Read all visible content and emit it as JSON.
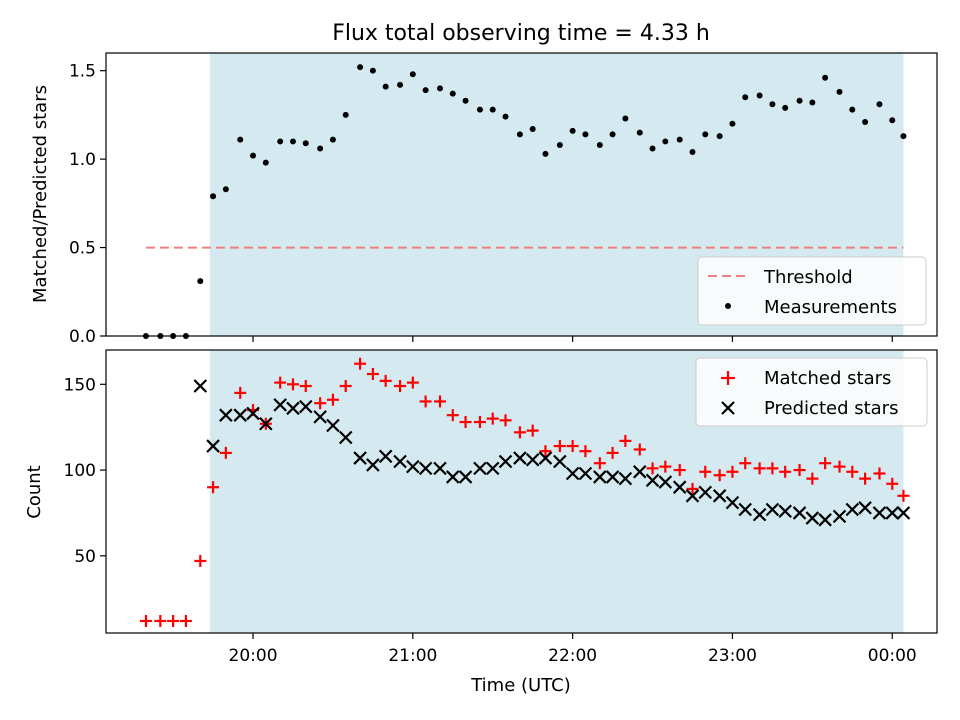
{
  "title": "Flux total observing time = 4.33 h",
  "chart_data": [
    {
      "type": "scatter",
      "panel": "top",
      "title": "Flux total observing time = 4.33 h",
      "xlabel": "",
      "ylabel": "Matched/Predicted stars",
      "x_unit": "hours since 00:00 of first day (UTC)",
      "xlim": [
        19.08,
        24.28
      ],
      "ylim": [
        0,
        1.6
      ],
      "yticks": [
        0.0,
        0.5,
        1.0,
        1.5
      ],
      "ytick_labels": [
        "0.0",
        "0.5",
        "1.0",
        "1.5"
      ],
      "xticks": [
        20,
        21,
        22,
        23,
        24
      ],
      "grid": false,
      "observing_window": [
        19.73,
        24.07
      ],
      "observing_window_color": "#d4eaf0",
      "threshold": {
        "value": 0.5,
        "x_range": [
          19.33,
          24.07
        ],
        "color": "#f08080"
      },
      "legend": {
        "position": "lower-right",
        "entries": [
          "Threshold",
          "Measurements"
        ]
      },
      "series": [
        {
          "name": "Measurements",
          "color": "#000000",
          "marker": "dot",
          "x": [
            19.33,
            19.42,
            19.5,
            19.58,
            19.67,
            19.75,
            19.83,
            19.92,
            20.0,
            20.08,
            20.17,
            20.25,
            20.33,
            20.42,
            20.5,
            20.58,
            20.67,
            20.75,
            20.83,
            20.92,
            21.0,
            21.08,
            21.17,
            21.25,
            21.33,
            21.42,
            21.5,
            21.58,
            21.67,
            21.75,
            21.83,
            21.92,
            22.0,
            22.08,
            22.17,
            22.25,
            22.33,
            22.42,
            22.5,
            22.58,
            22.67,
            22.75,
            22.83,
            22.92,
            23.0,
            23.08,
            23.17,
            23.25,
            23.33,
            23.42,
            23.5,
            23.58,
            23.67,
            23.75,
            23.83,
            23.92,
            24.0,
            24.07
          ],
          "y": [
            0.0,
            0.0,
            0.0,
            0.0,
            0.31,
            0.79,
            0.83,
            1.11,
            1.02,
            0.98,
            1.1,
            1.1,
            1.09,
            1.06,
            1.11,
            1.25,
            1.52,
            1.5,
            1.41,
            1.42,
            1.48,
            1.39,
            1.4,
            1.37,
            1.33,
            1.28,
            1.28,
            1.24,
            1.14,
            1.17,
            1.03,
            1.08,
            1.16,
            1.14,
            1.08,
            1.14,
            1.23,
            1.15,
            1.06,
            1.1,
            1.11,
            1.04,
            1.14,
            1.13,
            1.2,
            1.35,
            1.36,
            1.31,
            1.29,
            1.33,
            1.32,
            1.46,
            1.38,
            1.28,
            1.21,
            1.31,
            1.22,
            1.13
          ]
        }
      ]
    },
    {
      "type": "scatter",
      "panel": "bottom",
      "xlabel": "Time (UTC)",
      "ylabel": "Count",
      "x_unit": "hours since 00:00 of first day (UTC)",
      "xlim": [
        19.08,
        24.28
      ],
      "ylim": [
        5,
        170
      ],
      "yticks": [
        50,
        100,
        150
      ],
      "ytick_labels": [
        "50",
        "100",
        "150"
      ],
      "xticks": [
        20,
        21,
        22,
        23,
        24
      ],
      "xtick_labels": [
        "20:00",
        "21:00",
        "22:00",
        "23:00",
        "00:00"
      ],
      "grid": false,
      "observing_window": [
        19.73,
        24.07
      ],
      "observing_window_color": "#d4eaf0",
      "legend": {
        "position": "upper-right",
        "entries": [
          "Matched stars",
          "Predicted stars"
        ]
      },
      "series": [
        {
          "name": "Matched stars",
          "color": "#ff0000",
          "marker": "plus",
          "x": [
            19.33,
            19.42,
            19.5,
            19.58,
            19.67,
            19.75,
            19.83,
            19.92,
            20.0,
            20.08,
            20.17,
            20.25,
            20.33,
            20.42,
            20.5,
            20.58,
            20.67,
            20.75,
            20.83,
            20.92,
            21.0,
            21.08,
            21.17,
            21.25,
            21.33,
            21.42,
            21.5,
            21.58,
            21.67,
            21.75,
            21.83,
            21.92,
            22.0,
            22.08,
            22.17,
            22.25,
            22.33,
            22.42,
            22.5,
            22.58,
            22.67,
            22.75,
            22.83,
            22.92,
            23.0,
            23.08,
            23.17,
            23.25,
            23.33,
            23.42,
            23.5,
            23.58,
            23.67,
            23.75,
            23.83,
            23.92,
            24.0,
            24.07
          ],
          "y": [
            12,
            12,
            12,
            12,
            47,
            90,
            110,
            145,
            135,
            127,
            151,
            150,
            149,
            139,
            141,
            149,
            162,
            156,
            152,
            149,
            151,
            140,
            140,
            132,
            128,
            128,
            130,
            129,
            122,
            123,
            111,
            114,
            114,
            111,
            104,
            110,
            117,
            112,
            101,
            102,
            100,
            89,
            99,
            97,
            99,
            104,
            101,
            101,
            99,
            100,
            95,
            104,
            102,
            99,
            95,
            98,
            92,
            85
          ]
        },
        {
          "name": "Predicted stars",
          "color": "#000000",
          "marker": "x",
          "x": [
            19.67,
            19.75,
            19.83,
            19.92,
            20.0,
            20.08,
            20.17,
            20.25,
            20.33,
            20.42,
            20.5,
            20.58,
            20.67,
            20.75,
            20.83,
            20.92,
            21.0,
            21.08,
            21.17,
            21.25,
            21.33,
            21.42,
            21.5,
            21.58,
            21.67,
            21.75,
            21.83,
            21.92,
            22.0,
            22.08,
            22.17,
            22.25,
            22.33,
            22.42,
            22.5,
            22.58,
            22.67,
            22.75,
            22.83,
            22.92,
            23.0,
            23.08,
            23.17,
            23.25,
            23.33,
            23.42,
            23.5,
            23.58,
            23.67,
            23.75,
            23.83,
            23.92,
            24.0,
            24.07
          ],
          "y": [
            149,
            114,
            132,
            132,
            133,
            127,
            138,
            136,
            137,
            131,
            126,
            119,
            107,
            103,
            108,
            105,
            102,
            101,
            101,
            96,
            96,
            101,
            101,
            105,
            107,
            106,
            107,
            105,
            98,
            98,
            96,
            96,
            95,
            99,
            94,
            93,
            90,
            85,
            87,
            85,
            81,
            77,
            74,
            77,
            76,
            75,
            72,
            71,
            73,
            77,
            78,
            75,
            75,
            75
          ]
        }
      ]
    }
  ]
}
